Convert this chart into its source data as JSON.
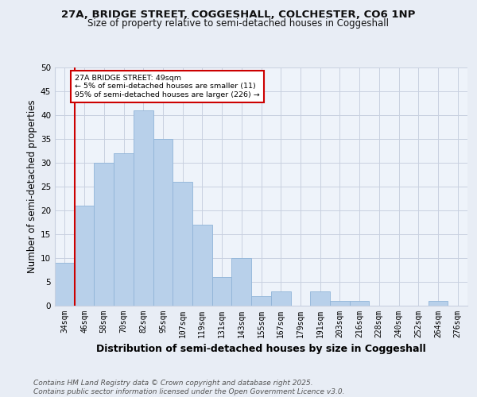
{
  "title1": "27A, BRIDGE STREET, COGGESHALL, COLCHESTER, CO6 1NP",
  "title2": "Size of property relative to semi-detached houses in Coggeshall",
  "xlabel": "Distribution of semi-detached houses by size in Coggeshall",
  "ylabel": "Number of semi-detached properties",
  "footer": "Contains HM Land Registry data © Crown copyright and database right 2025.\nContains public sector information licensed under the Open Government Licence v3.0.",
  "categories": [
    "34sqm",
    "46sqm",
    "58sqm",
    "70sqm",
    "82sqm",
    "95sqm",
    "107sqm",
    "119sqm",
    "131sqm",
    "143sqm",
    "155sqm",
    "167sqm",
    "179sqm",
    "191sqm",
    "203sqm",
    "216sqm",
    "228sqm",
    "240sqm",
    "252sqm",
    "264sqm",
    "276sqm"
  ],
  "values": [
    9,
    21,
    30,
    32,
    41,
    35,
    26,
    17,
    6,
    10,
    2,
    3,
    0,
    3,
    1,
    1,
    0,
    0,
    0,
    1,
    0
  ],
  "bar_color": "#b8d0ea",
  "bar_edge_color": "#90b4d8",
  "annotation_text": "27A BRIDGE STREET: 49sqm\n← 5% of semi-detached houses are smaller (11)\n95% of semi-detached houses are larger (226) →",
  "annotation_box_color": "#ffffff",
  "annotation_box_edge": "#cc0000",
  "property_line_color": "#cc0000",
  "ylim": [
    0,
    50
  ],
  "yticks": [
    0,
    5,
    10,
    15,
    20,
    25,
    30,
    35,
    40,
    45,
    50
  ],
  "bg_color": "#e8edf5",
  "plot_bg_color": "#eef3fa",
  "grid_color": "#c8d0e0",
  "title_fontsize": 9.5,
  "subtitle_fontsize": 8.5,
  "axis_label_fontsize": 8.5,
  "tick_fontsize": 7,
  "footer_fontsize": 6.5
}
